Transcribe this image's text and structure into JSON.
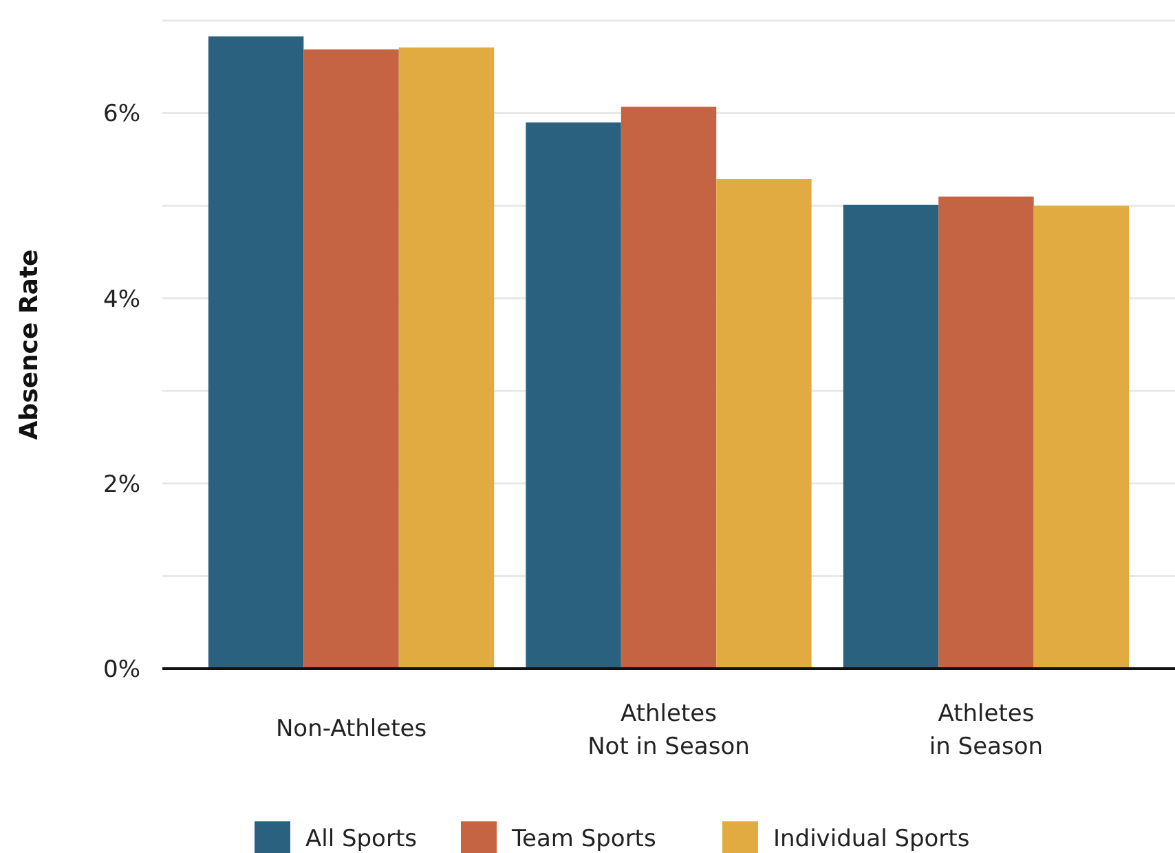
{
  "chart_data": {
    "type": "bar",
    "ylabel": "Absence Rate",
    "categories": [
      "Non-Athletes",
      "Athletes\nNot in Season",
      "Athletes\nin Season"
    ],
    "series": [
      {
        "name": "All Sports",
        "color": "#2a617f",
        "values": [
          6.83,
          5.9,
          5.01
        ]
      },
      {
        "name": "Team Sports",
        "color": "#c56443",
        "values": [
          6.69,
          6.07,
          5.1
        ]
      },
      {
        "name": "Individual Sports",
        "color": "#e1ab42",
        "values": [
          6.71,
          5.29,
          5.0
        ]
      }
    ],
    "ylim": [
      0,
      7
    ],
    "yticks": [
      {
        "value": 0,
        "label": "0%"
      },
      {
        "value": 1,
        "label": null
      },
      {
        "value": 2,
        "label": "2%"
      },
      {
        "value": 3,
        "label": null
      },
      {
        "value": 4,
        "label": "4%"
      },
      {
        "value": 5,
        "label": null
      },
      {
        "value": 6,
        "label": "6%"
      },
      {
        "value": 7,
        "label": null
      }
    ],
    "grid": "y",
    "legend": "bottom"
  }
}
